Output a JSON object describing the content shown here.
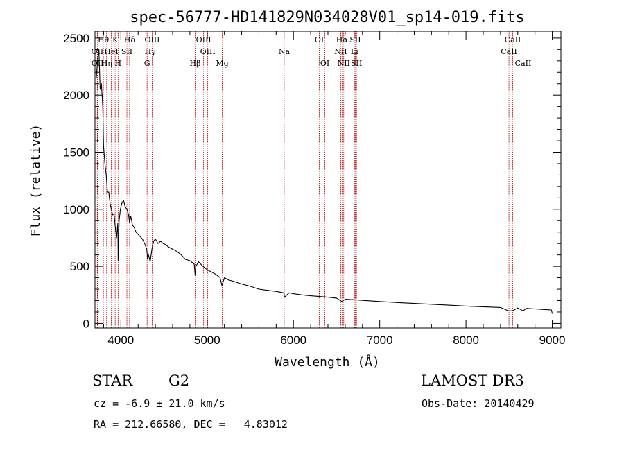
{
  "chart_data": {
    "type": "line",
    "title": "spec-56777-HD141829N034028V01_sp14-019.fits",
    "xlabel": "Wavelength (Å)",
    "ylabel": "Flux (relative)",
    "xlim": [
      3700,
      9100
    ],
    "ylim": [
      -40,
      2560
    ],
    "xticks": [
      4000,
      5000,
      6000,
      7000,
      8000,
      9000
    ],
    "yticks": [
      0,
      500,
      1000,
      1500,
      2000,
      2500
    ],
    "grid": false,
    "series": [
      {
        "name": "flux",
        "x": [
          3715,
          3730,
          3745,
          3760,
          3775,
          3790,
          3800,
          3815,
          3830,
          3845,
          3860,
          3875,
          3890,
          3905,
          3920,
          3935,
          3950,
          3965,
          3968,
          3980,
          3995,
          4010,
          4030,
          4050,
          4070,
          4090,
          4101,
          4115,
          4135,
          4155,
          4175,
          4200,
          4225,
          4250,
          4275,
          4300,
          4310,
          4320,
          4340,
          4360,
          4380,
          4400,
          4430,
          4460,
          4490,
          4520,
          4550,
          4600,
          4650,
          4700,
          4750,
          4800,
          4850,
          4861,
          4870,
          4900,
          4950,
          5000,
          5050,
          5100,
          5150,
          5172,
          5183,
          5200,
          5250,
          5300,
          5400,
          5500,
          5600,
          5700,
          5800,
          5890,
          5896,
          5950,
          6000,
          6100,
          6200,
          6300,
          6400,
          6500,
          6563,
          6600,
          6700,
          6800,
          7000,
          7200,
          7400,
          7600,
          7800,
          8000,
          8200,
          8400,
          8498,
          8542,
          8600,
          8662,
          8700,
          8800,
          8900,
          8990,
          9000
        ],
        "values": [
          2150,
          2300,
          2400,
          2050,
          2100,
          1900,
          1550,
          1400,
          1300,
          1150,
          1150,
          1050,
          1000,
          950,
          960,
          850,
          750,
          880,
          550,
          900,
          1000,
          1050,
          1080,
          1020,
          1000,
          950,
          880,
          940,
          860,
          840,
          800,
          780,
          760,
          740,
          700,
          650,
          560,
          600,
          540,
          650,
          720,
          740,
          700,
          720,
          700,
          690,
          670,
          650,
          630,
          600,
          560,
          550,
          520,
          420,
          500,
          540,
          500,
          470,
          450,
          430,
          400,
          330,
          360,
          400,
          380,
          370,
          345,
          325,
          300,
          290,
          280,
          268,
          230,
          268,
          260,
          250,
          242,
          236,
          230,
          222,
          190,
          212,
          208,
          202,
          192,
          183,
          175,
          168,
          160,
          152,
          146,
          140,
          108,
          112,
          135,
          110,
          132,
          127,
          122,
          118,
          85
        ]
      }
    ],
    "line_markers": [
      {
        "label": "Hθ",
        "x": 3797,
        "row": 1
      },
      {
        "label": "K",
        "x": 3934,
        "row": 1
      },
      {
        "label": "Hδ",
        "x": 4101,
        "row": 1
      },
      {
        "label": "OIII",
        "x": 4363,
        "row": 1
      },
      {
        "label": "OIII",
        "x": 4959,
        "row": 1
      },
      {
        "label": "OI",
        "x": 6300,
        "row": 1
      },
      {
        "label": "Hα",
        "x": 6563,
        "row": 1
      },
      {
        "label": "SII",
        "x": 6717,
        "row": 1
      },
      {
        "label": "CaII",
        "x": 8542,
        "row": 1
      },
      {
        "label": "OII",
        "x": 3727,
        "row": 2
      },
      {
        "label": "HeI",
        "x": 3889,
        "row": 2
      },
      {
        "label": "SII",
        "x": 4070,
        "row": 2
      },
      {
        "label": "Hγ",
        "x": 4340,
        "row": 2
      },
      {
        "label": "OIII",
        "x": 5007,
        "row": 2
      },
      {
        "label": "Na",
        "x": 5893,
        "row": 2
      },
      {
        "label": "NII",
        "x": 6548,
        "row": 2
      },
      {
        "label": "Li",
        "x": 6708,
        "row": 2
      },
      {
        "label": "CaII",
        "x": 8498,
        "row": 2
      },
      {
        "label": "OII",
        "x": 3729,
        "row": 3
      },
      {
        "label": "Hη",
        "x": 3835,
        "row": 3
      },
      {
        "label": "H",
        "x": 3968,
        "row": 3
      },
      {
        "label": "G",
        "x": 4304,
        "row": 3
      },
      {
        "label": "Hβ",
        "x": 4861,
        "row": 3
      },
      {
        "label": "Mg",
        "x": 5175,
        "row": 3
      },
      {
        "label": "OI",
        "x": 6364,
        "row": 3
      },
      {
        "label": "NII",
        "x": 6583,
        "row": 3
      },
      {
        "label": "SII",
        "x": 6731,
        "row": 3
      },
      {
        "label": "CaII",
        "x": 8662,
        "row": 3
      }
    ]
  },
  "info": {
    "object_type": "STAR",
    "subclass": "G2",
    "survey": "LAMOST DR3",
    "cz": "cz = -6.9 ± 21.0 km/s",
    "obs_date": "Obs-Date: 20140429",
    "coords": "RA = 212.66580, DEC =   4.83012"
  },
  "colors": {
    "axis": "#000000",
    "spectrum": "#000000",
    "marker": "#b00000"
  }
}
